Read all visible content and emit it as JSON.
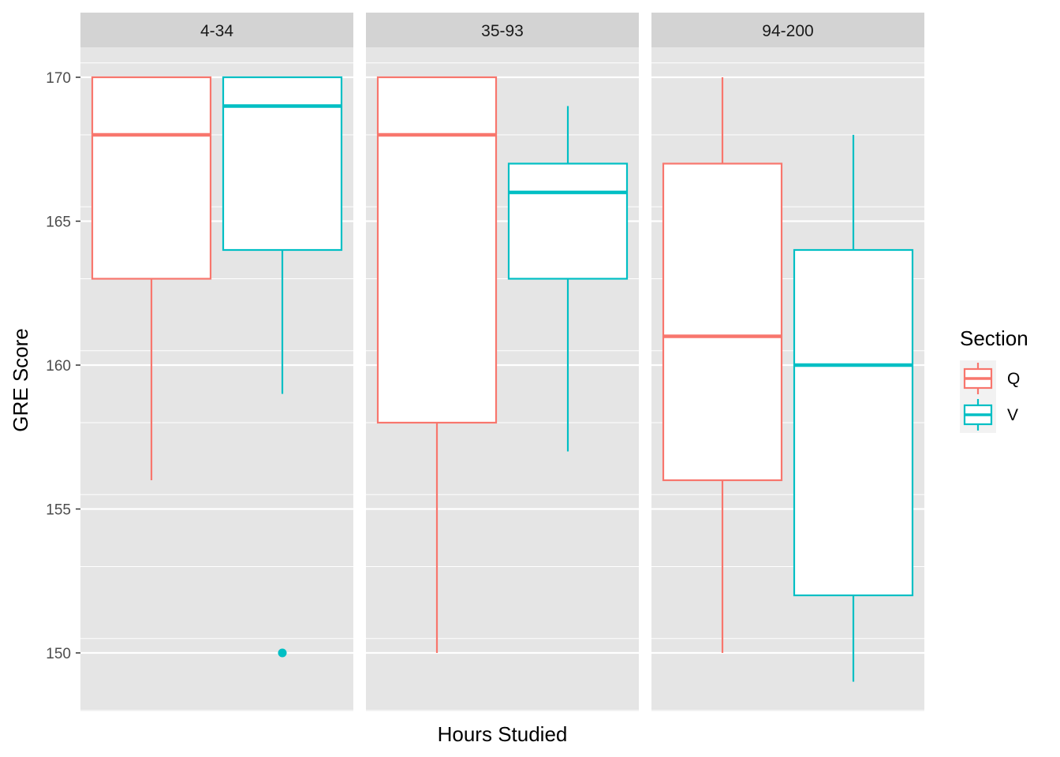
{
  "chart_data": {
    "type": "boxplot",
    "facets": [
      "4-34",
      "35-93",
      "94-200"
    ],
    "xlabel": "Hours Studied",
    "ylabel": "GRE Score",
    "ylim": [
      148,
      172
    ],
    "yticks": [
      150,
      155,
      160,
      165,
      170
    ],
    "grid": true,
    "legend": {
      "title": "Section",
      "placement": "right",
      "entries": [
        {
          "label": "Q",
          "color": "#F8766D"
        },
        {
          "label": "V",
          "color": "#00BFC4"
        }
      ]
    },
    "series": [
      {
        "name": "Q",
        "color": "#F8766D",
        "boxes": [
          {
            "facet": "4-34",
            "min": 156,
            "q1": 163,
            "median": 168,
            "q3": 170,
            "max": 170,
            "outliers": []
          },
          {
            "facet": "35-93",
            "min": 150,
            "q1": 158,
            "median": 168,
            "q3": 170,
            "max": 170,
            "outliers": []
          },
          {
            "facet": "94-200",
            "min": 150,
            "q1": 156,
            "median": 161,
            "q3": 167,
            "max": 170,
            "outliers": []
          }
        ]
      },
      {
        "name": "V",
        "color": "#00BFC4",
        "boxes": [
          {
            "facet": "4-34",
            "min": 159,
            "q1": 164,
            "median": 169,
            "q3": 170,
            "max": 170,
            "outliers": [
              150
            ]
          },
          {
            "facet": "35-93",
            "min": 157,
            "q1": 163,
            "median": 166,
            "q3": 167,
            "max": 169,
            "outliers": []
          },
          {
            "facet": "94-200",
            "min": 149,
            "q1": 152,
            "median": 160,
            "q3": 164,
            "max": 168,
            "outliers": []
          }
        ]
      }
    ]
  },
  "colors": {
    "panel_bg": "#E5E5E5",
    "strip_bg": "#D3D3D3",
    "grid": "#FFFFFF"
  }
}
